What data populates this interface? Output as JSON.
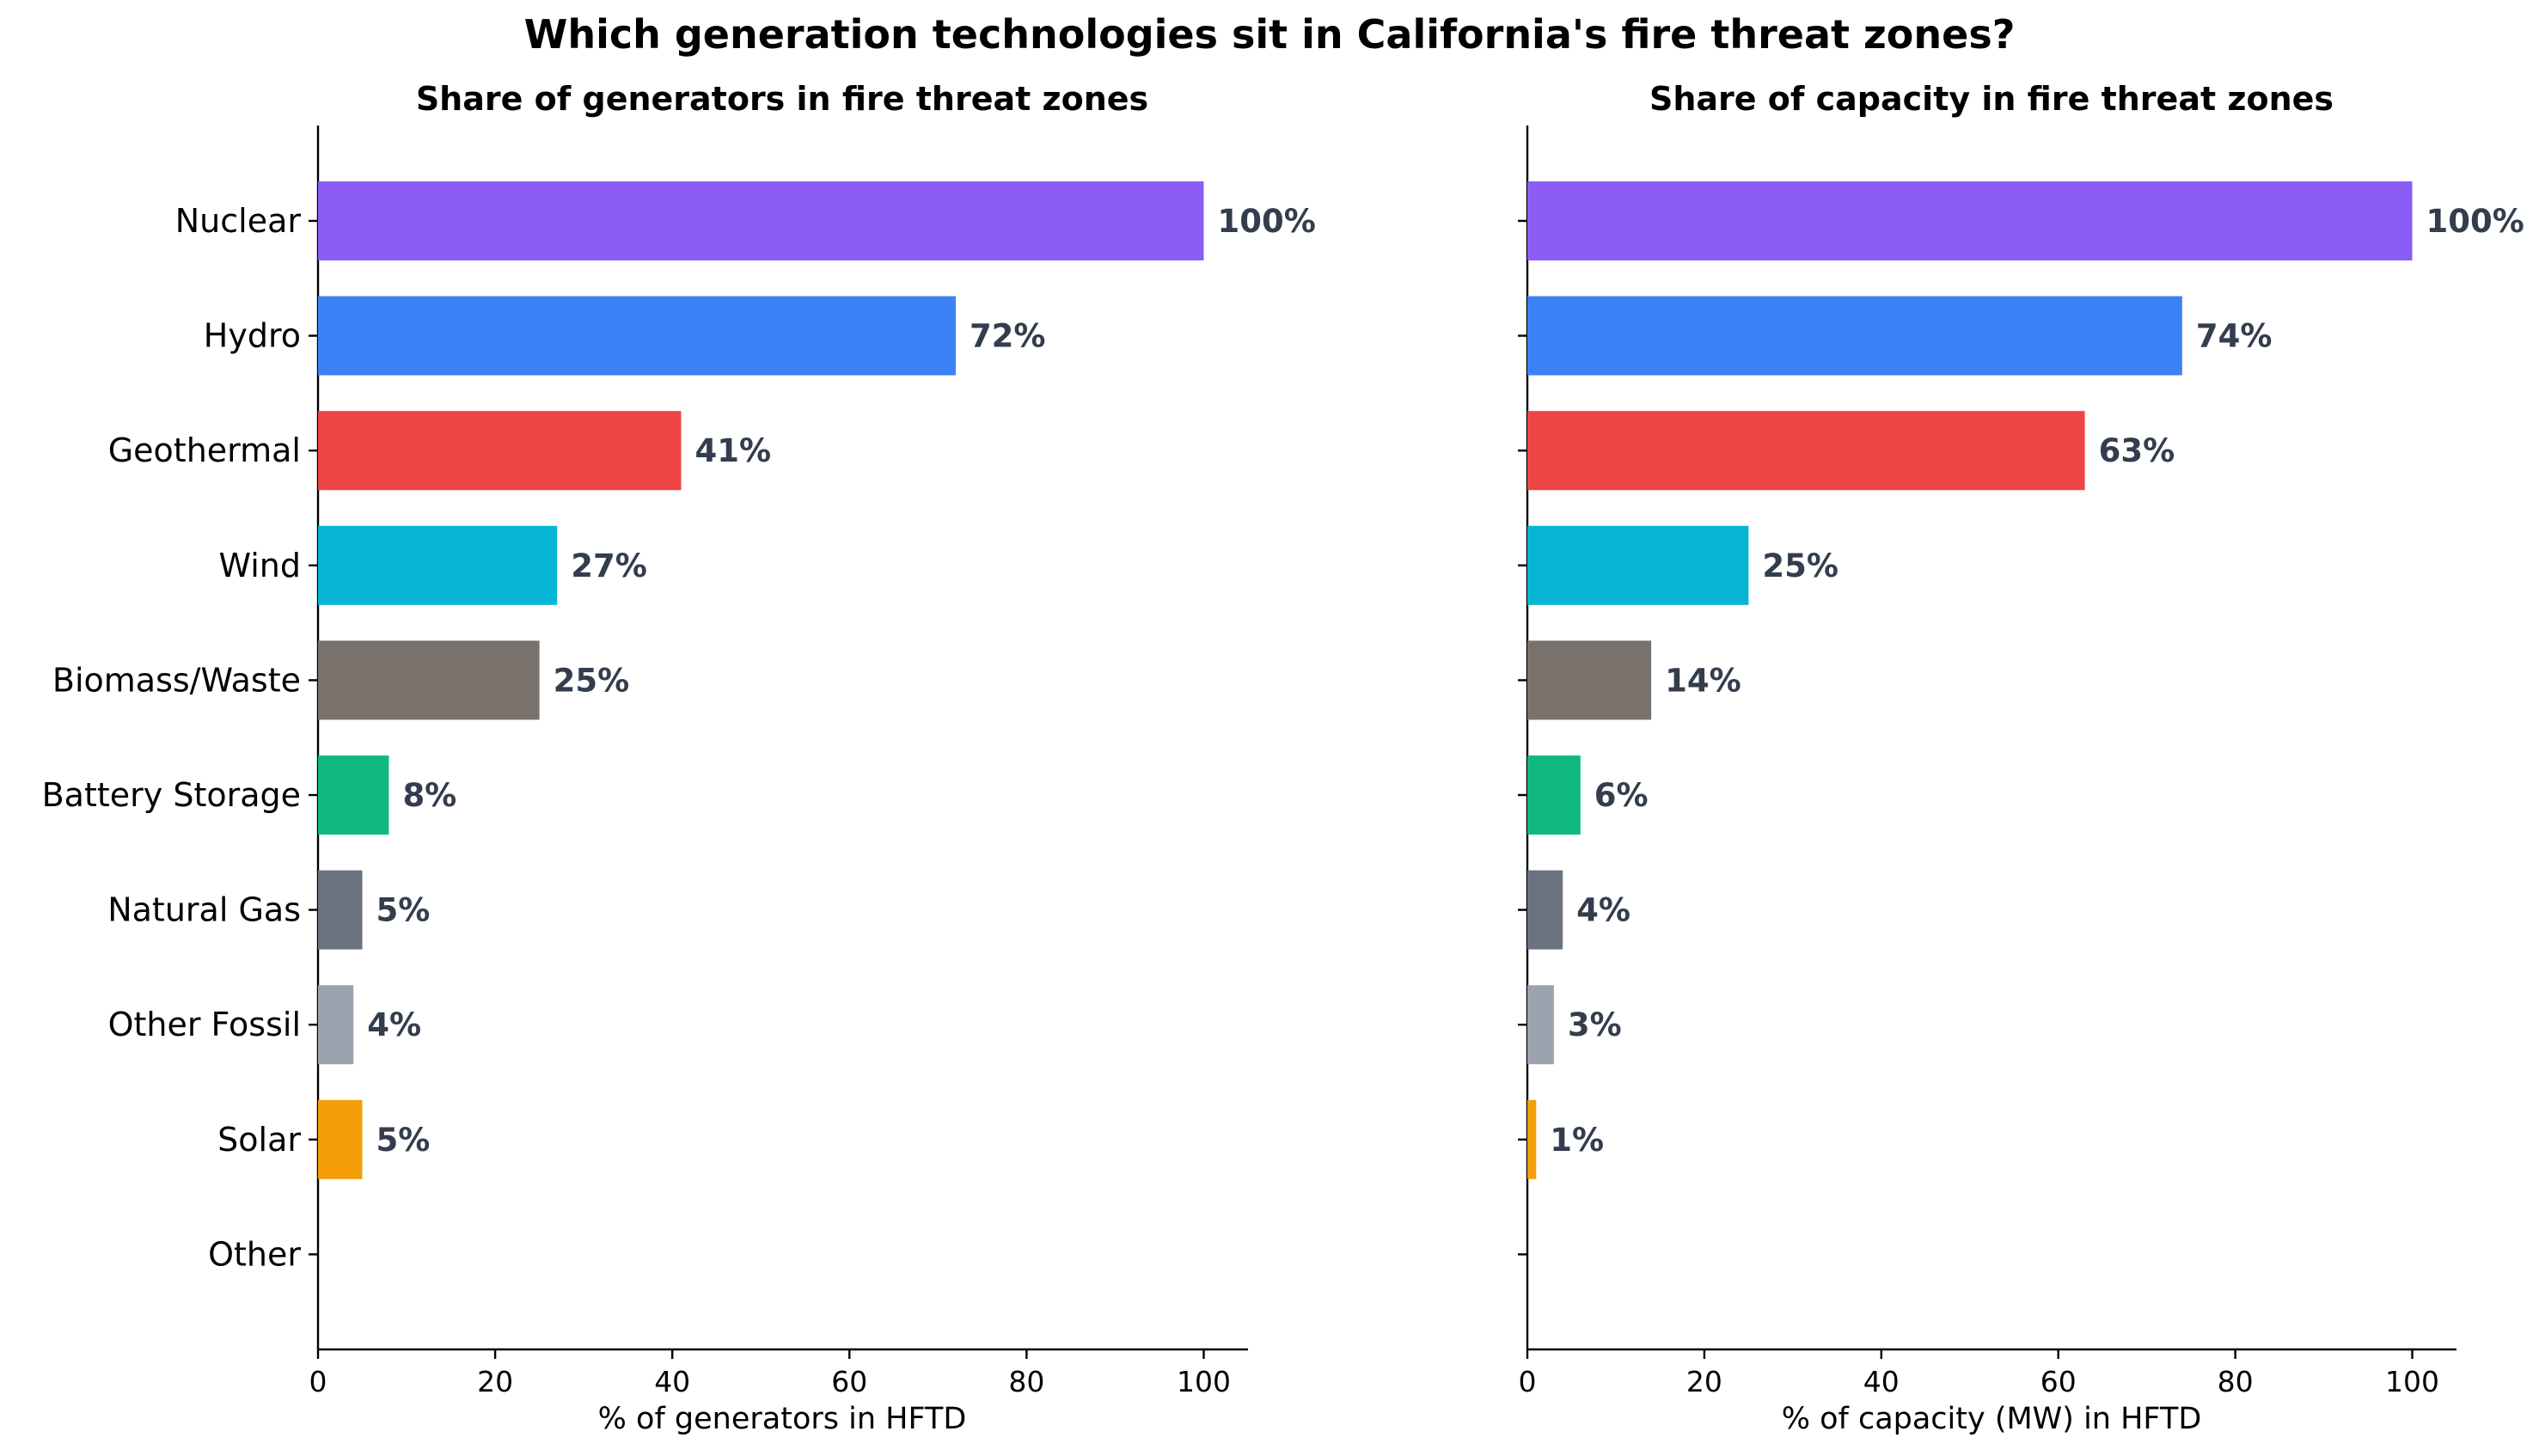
{
  "chart_data": [
    {
      "type": "bar",
      "orientation": "horizontal",
      "title": "Share of generators in fire threat zones",
      "xlabel": "% of generators in HFTD",
      "ylabel": "",
      "xlim": [
        0,
        105
      ],
      "xticks": [
        0,
        20,
        40,
        60,
        80,
        100
      ],
      "categories": [
        "Nuclear",
        "Hydro",
        "Geothermal",
        "Wind",
        "Biomass/Waste",
        "Battery Storage",
        "Natural Gas",
        "Other Fossil",
        "Solar",
        "Other"
      ],
      "values": [
        100,
        72,
        41,
        27,
        25,
        8,
        5,
        4,
        5,
        0
      ],
      "value_labels": [
        "100%",
        "72%",
        "41%",
        "27%",
        "25%",
        "8%",
        "5%",
        "4%",
        "5%",
        ""
      ],
      "grid": false
    },
    {
      "type": "bar",
      "orientation": "horizontal",
      "title": "Share of capacity in fire threat zones",
      "xlabel": "% of capacity (MW) in HFTD",
      "ylabel": "",
      "xlim": [
        0,
        105
      ],
      "xticks": [
        0,
        20,
        40,
        60,
        80,
        100
      ],
      "categories": [
        "Nuclear",
        "Hydro",
        "Geothermal",
        "Wind",
        "Biomass/Waste",
        "Battery Storage",
        "Natural Gas",
        "Other Fossil",
        "Solar",
        "Other"
      ],
      "values": [
        100,
        74,
        63,
        25,
        14,
        6,
        4,
        3,
        1,
        0
      ],
      "value_labels": [
        "100%",
        "74%",
        "63%",
        "25%",
        "14%",
        "6%",
        "4%",
        "3%",
        "1%",
        ""
      ],
      "grid": false
    }
  ],
  "figure": {
    "suptitle": "Which generation technologies sit in California's fire threat zones?"
  },
  "colors": {
    "Nuclear": "#8b5cf6",
    "Hydro": "#3b82f6",
    "Geothermal": "#ef4444",
    "Wind": "#06b6d4",
    "Biomass/Waste": "#78716c",
    "Battery Storage": "#10b981",
    "Natural Gas": "#6b7280",
    "Other Fossil": "#9ca3af",
    "Solar": "#f59e0b",
    "Other": "#d1d5db",
    "value_label": "#333d4d"
  }
}
